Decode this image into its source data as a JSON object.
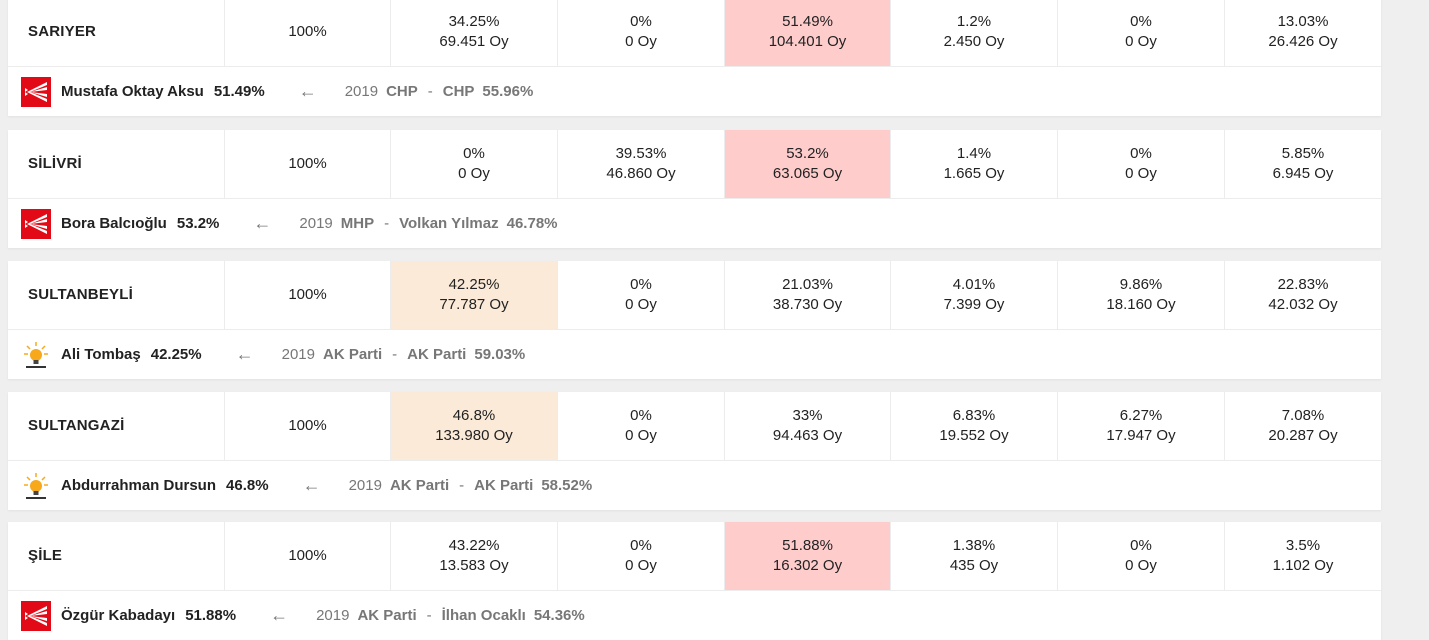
{
  "rows": [
    {
      "district": "SARIYER",
      "counted": "100%",
      "cells": [
        {
          "pct": "34.25%",
          "votes": "69.451 Oy"
        },
        {
          "pct": "0%",
          "votes": "0 Oy"
        },
        {
          "pct": "51.49%",
          "votes": "104.401 Oy"
        },
        {
          "pct": "1.2%",
          "votes": "2.450 Oy"
        },
        {
          "pct": "0%",
          "votes": "0 Oy"
        },
        {
          "pct": "13.03%",
          "votes": "26.426 Oy"
        }
      ],
      "winner_party_icon": "chp-logo-icon",
      "candidate": "Mustafa Oktay Aksu",
      "candidate_pct": "51.49%",
      "prev_year": "2019",
      "prev_party": "CHP",
      "prev_winner": "CHP",
      "prev_pct": "55.96%"
    },
    {
      "district": "SİLİVRİ",
      "counted": "100%",
      "cells": [
        {
          "pct": "0%",
          "votes": "0 Oy"
        },
        {
          "pct": "39.53%",
          "votes": "46.860 Oy"
        },
        {
          "pct": "53.2%",
          "votes": "63.065 Oy"
        },
        {
          "pct": "1.4%",
          "votes": "1.665 Oy"
        },
        {
          "pct": "0%",
          "votes": "0 Oy"
        },
        {
          "pct": "5.85%",
          "votes": "6.945 Oy"
        }
      ],
      "winner_party_icon": "chp-logo-icon",
      "candidate": "Bora Balcıoğlu",
      "candidate_pct": "53.2%",
      "prev_year": "2019",
      "prev_party": "MHP",
      "prev_winner": "Volkan Yılmaz",
      "prev_pct": "46.78%"
    },
    {
      "district": "SULTANBEYLİ",
      "counted": "100%",
      "cells": [
        {
          "pct": "42.25%",
          "votes": "77.787 Oy"
        },
        {
          "pct": "0%",
          "votes": "0 Oy"
        },
        {
          "pct": "21.03%",
          "votes": "38.730 Oy"
        },
        {
          "pct": "4.01%",
          "votes": "7.399 Oy"
        },
        {
          "pct": "9.86%",
          "votes": "18.160 Oy"
        },
        {
          "pct": "22.83%",
          "votes": "42.032 Oy"
        }
      ],
      "winner_party_icon": "ak-parti-logo-icon",
      "candidate": "Ali Tombaş",
      "candidate_pct": "42.25%",
      "prev_year": "2019",
      "prev_party": "AK Parti",
      "prev_winner": "AK Parti",
      "prev_pct": "59.03%"
    },
    {
      "district": "SULTANGAZİ",
      "counted": "100%",
      "cells": [
        {
          "pct": "46.8%",
          "votes": "133.980 Oy"
        },
        {
          "pct": "0%",
          "votes": "0 Oy"
        },
        {
          "pct": "33%",
          "votes": "94.463 Oy"
        },
        {
          "pct": "6.83%",
          "votes": "19.552 Oy"
        },
        {
          "pct": "6.27%",
          "votes": "17.947 Oy"
        },
        {
          "pct": "7.08%",
          "votes": "20.287 Oy"
        }
      ],
      "winner_party_icon": "ak-parti-logo-icon",
      "candidate": "Abdurrahman Dursun",
      "candidate_pct": "46.8%",
      "prev_year": "2019",
      "prev_party": "AK Parti",
      "prev_winner": "AK Parti",
      "prev_pct": "58.52%"
    },
    {
      "district": "ŞİLE",
      "counted": "100%",
      "cells": [
        {
          "pct": "43.22%",
          "votes": "13.583 Oy"
        },
        {
          "pct": "0%",
          "votes": "0 Oy"
        },
        {
          "pct": "51.88%",
          "votes": "16.302 Oy"
        },
        {
          "pct": "1.38%",
          "votes": "435 Oy"
        },
        {
          "pct": "0%",
          "votes": "0 Oy"
        },
        {
          "pct": "3.5%",
          "votes": "1.102 Oy"
        }
      ],
      "winner_party_icon": "chp-logo-icon",
      "candidate": "Özgür Kabadayı",
      "candidate_pct": "51.88%",
      "prev_year": "2019",
      "prev_party": "AK Parti",
      "prev_winner": "İlhan Ocaklı",
      "prev_pct": "54.36%"
    }
  ],
  "separator": "-",
  "arrow_icon": "arrow-left-icon",
  "colors": {
    "chp_highlight": "#ffcccc",
    "akp_highlight": "#fbead8",
    "chp_red": "#e30a17",
    "akp_orange": "#f7a81b"
  }
}
